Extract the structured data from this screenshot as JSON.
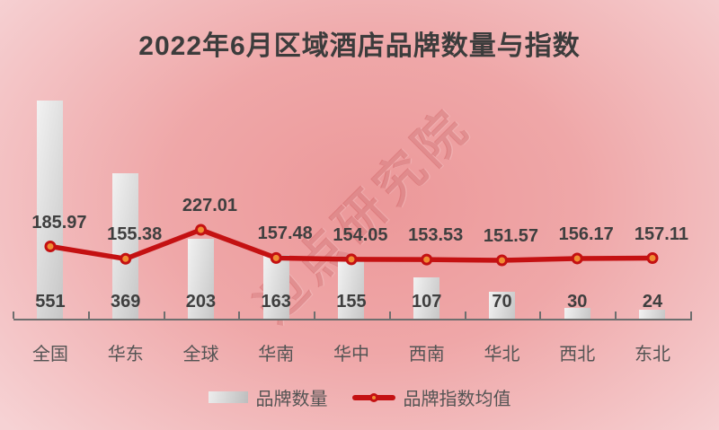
{
  "title": "2022年6月区域酒店品牌数量与指数",
  "watermark": "迈点研究院",
  "legend": {
    "bars_label": "品牌数量",
    "line_label": "品牌指数均值"
  },
  "colors": {
    "line": "#c41112",
    "marker": "#f08d33",
    "bar-light": "#f2f2f2",
    "bar-dark": "#c6c6c6",
    "label": "#3f3f3f",
    "cat": "#545454",
    "title": "#3c3c3c",
    "axis": "#6e6e6e",
    "bg-center": "#ec9899",
    "bg-mid": "#efa7a8",
    "bg-edge": "#f6d2d4"
  },
  "chart_data": {
    "type": "bar+line",
    "title": "2022年6月区域酒店品牌数量与指数",
    "categories": [
      "全国",
      "华东",
      "全球",
      "华南",
      "华中",
      "西南",
      "华北",
      "西北",
      "东北"
    ],
    "series": [
      {
        "name": "品牌数量",
        "type": "bar",
        "values": [
          551,
          369,
          203,
          163,
          155,
          107,
          70,
          30,
          24
        ]
      },
      {
        "name": "品牌指数均值",
        "type": "line",
        "values": [
          185.97,
          155.38,
          227.01,
          157.48,
          154.05,
          153.53,
          151.57,
          156.17,
          157.11
        ]
      }
    ],
    "legend_position": "bottom",
    "grid": false,
    "bar_axis_min": 0,
    "data_labels": true
  }
}
